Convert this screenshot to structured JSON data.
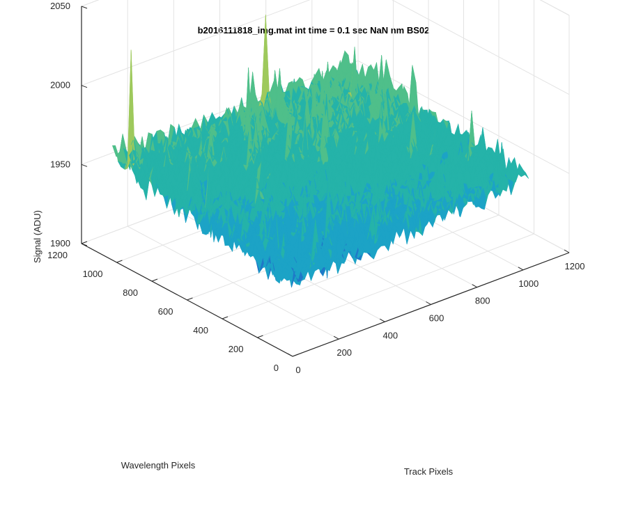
{
  "chart_data": {
    "type": "surface",
    "title": "b2016111818_img.mat int time = 0.1 sec  NaN nm BS02",
    "xlabel": "Track Pixels",
    "ylabel": "Wavelength Pixels",
    "zlabel": "Signal (ADU)",
    "xlim": [
      0,
      1200
    ],
    "ylim": [
      0,
      1200
    ],
    "zlim": [
      1900,
      2050
    ],
    "xticks": [
      "0",
      "200",
      "400",
      "600",
      "800",
      "1000",
      "1200"
    ],
    "yticks": [
      "0",
      "200",
      "400",
      "600",
      "800",
      "1000",
      "1200"
    ],
    "zticks": [
      "1900",
      "1950",
      "2000",
      "2050"
    ],
    "grid": true,
    "colormap": [
      "#1f78c8",
      "#1ca3c6",
      "#25b3a9",
      "#4fbf8a",
      "#9ec95c",
      "#d9d24a"
    ],
    "surface": {
      "x_range": [
        0,
        1024
      ],
      "y_range": [
        0,
        1024
      ],
      "baseline": 1962,
      "noise_amplitude": 12,
      "corner_values": {
        "x0_y0": 1945,
        "x0_y1024": 1963,
        "x1024_y0": 1958,
        "x1024_y1024": 1968
      },
      "peak_values": [
        2035,
        2022,
        2004,
        2000
      ],
      "dip_values": [
        1925,
        1928
      ]
    }
  }
}
